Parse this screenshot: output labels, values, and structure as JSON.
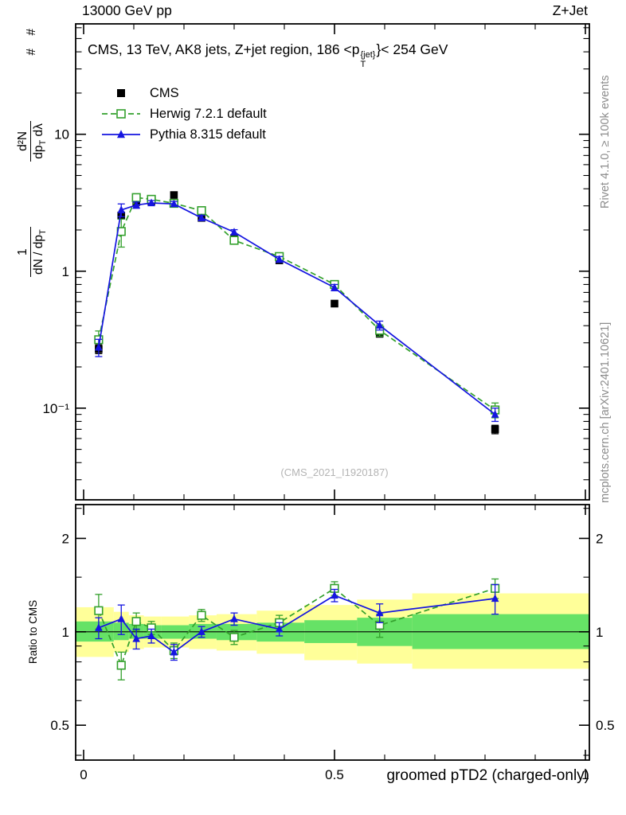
{
  "header": {
    "left": "13000 GeV pp",
    "right": "Z+Jet"
  },
  "right_margin": {
    "top": "Rivet 4.1.0, ≥ 100k events",
    "bottom": "mcplots.cern.ch [arXiv:2401.10621]"
  },
  "main_panel": {
    "title": {
      "pre": "CMS, 13 TeV, AK8 jets, Z+jet region, 186 <p",
      "sup": "{jet}",
      "sub": "T",
      "post": "}< 254 GeV"
    },
    "ylabel": {
      "frac1": {
        "num": "1",
        "den_pre": "dN / dp",
        "den_sub": "T"
      },
      "frac2": {
        "num": "d²N",
        "den_pre": "dp",
        "den_sub": "T",
        "den_post": " dλ"
      },
      "suffix": "# #"
    },
    "watermark": "(CMS_2021_I1920187)"
  },
  "ratio_panel": {
    "ylabel": "Ratio to CMS"
  },
  "xaxis": {
    "label": "groomed pTD2 (charged-only)"
  },
  "legend": [
    {
      "label": "CMS",
      "series": 0
    },
    {
      "label": "Herwig 7.2.1 default",
      "series": 1
    },
    {
      "label": "Pythia 8.315 default",
      "series": 2
    }
  ],
  "chart_data": {
    "type": "line",
    "title": "CMS, 13 TeV, AK8 jets, Z+jet region, 186 < pT(jet) < 254 GeV",
    "xlabel": "groomed pTD2 (charged-only)",
    "xlim": [
      0,
      1
    ],
    "xticks": [
      {
        "v": 0,
        "t": "0"
      },
      {
        "v": 0.5,
        "t": "0.5"
      },
      {
        "v": 1,
        "t": "1"
      }
    ],
    "xminor": [
      0.1,
      0.2,
      0.3,
      0.4,
      0.6,
      0.7,
      0.8,
      0.9
    ],
    "main": {
      "yscale": "log",
      "ylim": [
        0.0214,
        64
      ],
      "yticks": [
        {
          "v": 10,
          "t": "10"
        },
        {
          "v": 1,
          "t": "1"
        },
        {
          "v": 0.1,
          "t": "10⁻¹"
        }
      ]
    },
    "x": [
      0.03,
      0.075,
      0.105,
      0.135,
      0.18,
      0.235,
      0.3,
      0.39,
      0.5,
      0.59,
      0.82
    ],
    "series": [
      {
        "name": "CMS",
        "color": "#000000",
        "marker": "square-filled",
        "line": "none",
        "values": [
          0.27,
          2.55,
          3.2,
          3.25,
          3.6,
          2.45,
          1.75,
          1.2,
          0.58,
          0.35,
          0.07
        ],
        "yerr": [
          0.02,
          0.12,
          0.12,
          0.12,
          0.12,
          0.1,
          0.07,
          0.05,
          0.03,
          0.02,
          0.005
        ]
      },
      {
        "name": "Herwig 7.2.1 default",
        "color": "#33a02c",
        "marker": "square-open",
        "line": "dashed",
        "values": [
          0.316,
          1.95,
          3.45,
          3.35,
          3.13,
          2.77,
          1.68,
          1.28,
          0.8,
          0.37,
          0.097
        ],
        "yerr": [
          0.05,
          0.45,
          0.22,
          0.16,
          0.15,
          0.13,
          0.09,
          0.08,
          0.05,
          0.035,
          0.012
        ]
      },
      {
        "name": "Pythia 8.315 default",
        "color": "#1515e0",
        "marker": "triangle-filled",
        "line": "solid",
        "values": [
          0.278,
          2.8,
          3.04,
          3.15,
          3.1,
          2.45,
          1.93,
          1.22,
          0.76,
          0.402,
          0.09
        ],
        "yerr": [
          0.04,
          0.3,
          0.16,
          0.13,
          0.13,
          0.11,
          0.08,
          0.06,
          0.04,
          0.03,
          0.01
        ]
      }
    ],
    "ratio": {
      "yscale": "log",
      "ylim": [
        0.386,
        2.57
      ],
      "yticks": [
        {
          "v": 0.5,
          "t": "0.5"
        },
        {
          "v": 1,
          "t": "1"
        },
        {
          "v": 2,
          "t": "2"
        }
      ],
      "yminor": [
        0.4,
        0.6,
        0.7,
        0.8,
        0.9,
        1.5,
        2.5
      ],
      "ref_line": 1,
      "series": [
        {
          "ref": 1,
          "values": [
            1.17,
            0.78,
            1.08,
            1.03,
            0.87,
            1.13,
            0.96,
            1.07,
            1.38,
            1.05,
            1.38
          ],
          "yerr": [
            0.15,
            0.08,
            0.07,
            0.05,
            0.05,
            0.05,
            0.05,
            0.06,
            0.07,
            0.09,
            0.1
          ]
        },
        {
          "ref": 2,
          "values": [
            1.03,
            1.1,
            0.95,
            0.97,
            0.86,
            1.0,
            1.1,
            1.02,
            1.31,
            1.15,
            1.28
          ],
          "yerr": [
            0.08,
            0.12,
            0.07,
            0.05,
            0.05,
            0.04,
            0.05,
            0.05,
            0.06,
            0.08,
            0.14
          ]
        }
      ],
      "bands": {
        "yellow_color": "#ffff99",
        "green_color": "#66e266",
        "yellow": [
          {
            "x0": 0,
            "x1": 0.06,
            "lo": 0.83,
            "hi": 1.2
          },
          {
            "x0": 0.06,
            "x1": 0.09,
            "lo": 0.86,
            "hi": 1.16
          },
          {
            "x0": 0.09,
            "x1": 0.12,
            "lo": 0.88,
            "hi": 1.13
          },
          {
            "x0": 0.12,
            "x1": 0.155,
            "lo": 0.89,
            "hi": 1.12
          },
          {
            "x0": 0.155,
            "x1": 0.21,
            "lo": 0.89,
            "hi": 1.12
          },
          {
            "x0": 0.21,
            "x1": 0.265,
            "lo": 0.88,
            "hi": 1.13
          },
          {
            "x0": 0.265,
            "x1": 0.345,
            "lo": 0.87,
            "hi": 1.14
          },
          {
            "x0": 0.345,
            "x1": 0.44,
            "lo": 0.85,
            "hi": 1.17
          },
          {
            "x0": 0.44,
            "x1": 0.545,
            "lo": 0.81,
            "hi": 1.22
          },
          {
            "x0": 0.545,
            "x1": 0.655,
            "lo": 0.79,
            "hi": 1.27
          },
          {
            "x0": 0.655,
            "x1": 1.0,
            "lo": 0.76,
            "hi": 1.33
          }
        ],
        "green": [
          {
            "x0": 0,
            "x1": 0.06,
            "lo": 0.93,
            "hi": 1.08
          },
          {
            "x0": 0.06,
            "x1": 0.09,
            "lo": 0.94,
            "hi": 1.07
          },
          {
            "x0": 0.09,
            "x1": 0.12,
            "lo": 0.95,
            "hi": 1.06
          },
          {
            "x0": 0.12,
            "x1": 0.155,
            "lo": 0.95,
            "hi": 1.05
          },
          {
            "x0": 0.155,
            "x1": 0.21,
            "lo": 0.95,
            "hi": 1.05
          },
          {
            "x0": 0.21,
            "x1": 0.265,
            "lo": 0.95,
            "hi": 1.06
          },
          {
            "x0": 0.265,
            "x1": 0.345,
            "lo": 0.94,
            "hi": 1.06
          },
          {
            "x0": 0.345,
            "x1": 0.44,
            "lo": 0.93,
            "hi": 1.07
          },
          {
            "x0": 0.44,
            "x1": 0.545,
            "lo": 0.92,
            "hi": 1.09
          },
          {
            "x0": 0.545,
            "x1": 0.655,
            "lo": 0.9,
            "hi": 1.11
          },
          {
            "x0": 0.655,
            "x1": 1.0,
            "lo": 0.88,
            "hi": 1.14
          }
        ]
      }
    }
  }
}
